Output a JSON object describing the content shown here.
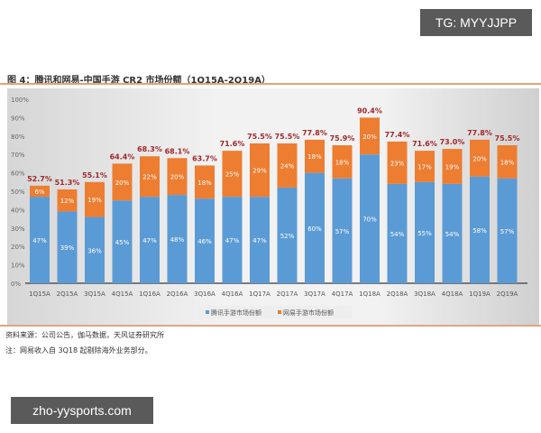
{
  "title": "图 4：腾讯和网易-中国手游 CR2 市场份额（1Q15A-2Q19A）",
  "source": "资料来源：公司公告，伽马数据，天风证券研究所",
  "note": "注：网易收入自 3Q18 起剔除海外业务部分。",
  "watermark_top": "TG: MYYJJPP",
  "watermark_bottom": "zho-yysports.com",
  "chart_data": {
    "type": "bar",
    "stacked": true,
    "categories": [
      "1Q15A",
      "2Q15A",
      "3Q15A",
      "4Q15A",
      "1Q16A",
      "2Q16A",
      "3Q16A",
      "4Q16A",
      "1Q17A",
      "2Q17A",
      "3Q17A",
      "4Q17A",
      "1Q18A",
      "2Q18A",
      "3Q18A",
      "4Q18A",
      "1Q19A",
      "2Q19A"
    ],
    "series": [
      {
        "name": "腾讯手游市场份额",
        "color": "#5b9bd5",
        "values": [
          47,
          39,
          36,
          45,
          47,
          48,
          46,
          47,
          47,
          52,
          60,
          57,
          70,
          54,
          55,
          54,
          58,
          57
        ]
      },
      {
        "name": "网易手游市场份额",
        "color": "#ed7d31",
        "values": [
          6,
          12,
          19,
          20,
          22,
          20,
          18,
          25,
          29,
          24,
          18,
          18,
          20,
          23,
          17,
          19,
          20,
          18
        ]
      }
    ],
    "totals": [
      "52.7%",
      "51.3%",
      "55.1%",
      "64.4%",
      "68.3%",
      "68.1%",
      "63.7%",
      "71.6%",
      "75.5%",
      "75.5%",
      "77.8%",
      "75.9%",
      "90.4%",
      "77.4%",
      "71.6%",
      "73.0%",
      "77.8%",
      "75.5%"
    ],
    "total_label_color": "#a0282a",
    "yticks": [
      "0%",
      "10%",
      "20%",
      "30%",
      "40%",
      "50%",
      "60%",
      "70%",
      "80%",
      "90%",
      "100%"
    ],
    "ylim": [
      0,
      100
    ],
    "grid": false,
    "legend": "bottom"
  }
}
